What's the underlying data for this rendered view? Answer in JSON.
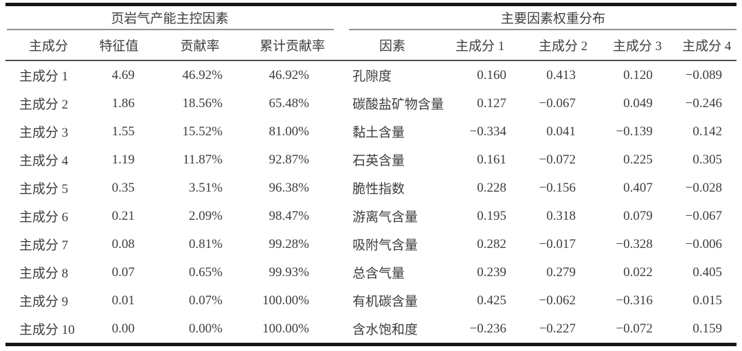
{
  "left_table": {
    "title": "页岩气产能主控因素",
    "columns": [
      "主成分",
      "特征值",
      "贡献率",
      "累计贡献率"
    ],
    "rows": [
      [
        "主成分 1",
        "4.69",
        "46.92%",
        "46.92%"
      ],
      [
        "主成分 2",
        "1.86",
        "18.56%",
        "65.48%"
      ],
      [
        "主成分 3",
        "1.55",
        "15.52%",
        "81.00%"
      ],
      [
        "主成分 4",
        "1.19",
        "11.87%",
        "92.87%"
      ],
      [
        "主成分 5",
        "0.35",
        "3.51%",
        "96.38%"
      ],
      [
        "主成分 6",
        "0.21",
        "2.09%",
        "98.47%"
      ],
      [
        "主成分 7",
        "0.08",
        "0.81%",
        "99.28%"
      ],
      [
        "主成分 8",
        "0.07",
        "0.65%",
        "99.93%"
      ],
      [
        "主成分 9",
        "0.01",
        "0.07%",
        "100.00%"
      ],
      [
        "主成分 10",
        "0.00",
        "0.00%",
        "100.00%"
      ]
    ]
  },
  "right_table": {
    "title": "主要因素权重分布",
    "columns": [
      "因素",
      "主成分 1",
      "主成分 2",
      "主成分 3",
      "主成分 4"
    ],
    "rows": [
      [
        "孔隙度",
        "0.160",
        "0.413",
        "0.120",
        "−0.089"
      ],
      [
        "碳酸盐矿物含量",
        "0.127",
        "−0.067",
        "0.049",
        "−0.246"
      ],
      [
        "黏土含量",
        "−0.334",
        "0.041",
        "−0.139",
        "0.142"
      ],
      [
        "石英含量",
        "0.161",
        "−0.072",
        "0.225",
        "0.305"
      ],
      [
        "脆性指数",
        "0.228",
        "−0.156",
        "0.407",
        "−0.028"
      ],
      [
        "游离气含量",
        "0.195",
        "0.318",
        "0.079",
        "−0.067"
      ],
      [
        "吸附气含量",
        "0.282",
        "−0.017",
        "−0.328",
        "−0.006"
      ],
      [
        "总含气量",
        "0.239",
        "0.279",
        "0.022",
        "0.405"
      ],
      [
        "有机碳含量",
        "0.425",
        "−0.062",
        "−0.316",
        "0.015"
      ],
      [
        "含水饱和度",
        "−0.236",
        "−0.227",
        "−0.072",
        "0.159"
      ]
    ]
  },
  "colors": {
    "background": "#ffffff",
    "text": "#3d3d3d",
    "rule_heavy": "#161616",
    "rule_title": "#8f8f8f",
    "rule_header": "#4c4c4c"
  }
}
